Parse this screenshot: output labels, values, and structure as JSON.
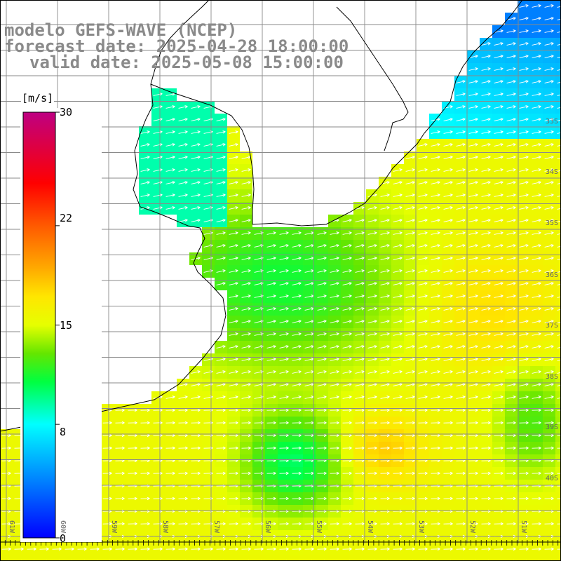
{
  "title": {
    "line1": "modelo GEFS-WAVE (NCEP)",
    "line2": "forecast date: 2025-04-28 18:00:00",
    "line3": "valid date: 2025-05-08 15:00:00"
  },
  "colorbar": {
    "unit": "[m/s]",
    "ticks": [
      {
        "value": 30,
        "label": "30"
      },
      {
        "value": 22,
        "label": "22"
      },
      {
        "value": 15,
        "label": "15"
      },
      {
        "value": 8,
        "label": "8"
      },
      {
        "value": 0,
        "label": "0"
      }
    ],
    "range": [
      0,
      30
    ]
  },
  "map": {
    "region": "Rio de la Plata / Uruguay / South Atlantic",
    "lat_labels": [
      "33S",
      "34S",
      "35S",
      "36S",
      "37S",
      "38S",
      "39S",
      "40S"
    ],
    "lon_labels": [
      "61W",
      "60W",
      "59W",
      "58W",
      "57W",
      "56W",
      "55W",
      "54W",
      "53W",
      "52W",
      "51W"
    ],
    "field": "wind speed",
    "arrow_direction": "toward east-northeast",
    "colors": {
      "land": "#ffffff",
      "grid": "#8a8a8a",
      "coast": "#000000",
      "arrow": "#ffffff"
    }
  }
}
